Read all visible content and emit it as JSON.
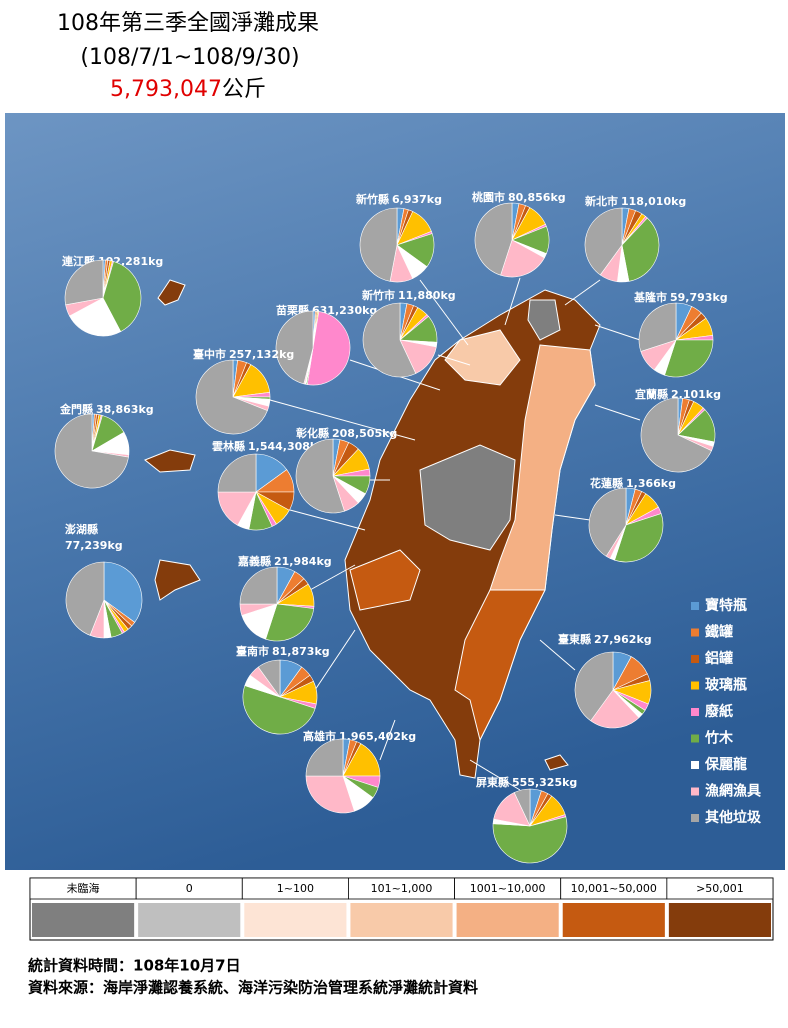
{
  "header": {
    "title": "108年第三季全國淨灘成果",
    "period": "(108/7/1~108/9/30)",
    "total": "5,793,047",
    "total_unit": "公斤"
  },
  "legend": {
    "items": [
      {
        "label": "寶特瓶",
        "color": "#5b9bd5"
      },
      {
        "label": "鐵罐",
        "color": "#ed7d31"
      },
      {
        "label": "鋁罐",
        "color": "#c55a11"
      },
      {
        "label": "玻璃瓶",
        "color": "#ffc000"
      },
      {
        "label": "廢紙",
        "color": "#ff88cc"
      },
      {
        "label": "竹木",
        "color": "#70ad47"
      },
      {
        "label": "保麗龍",
        "color": "#ffffff"
      },
      {
        "label": "漁網漁具",
        "color": "#ffb8c8"
      },
      {
        "label": "其他垃圾",
        "color": "#a5a5a5"
      }
    ]
  },
  "regions": [
    {
      "name": "新竹縣",
      "weight": "6,937kg",
      "slices": [
        3,
        2,
        2,
        12,
        1,
        15,
        8,
        10,
        47
      ]
    },
    {
      "name": "桃園市",
      "weight": "80,856kg",
      "slices": [
        3,
        3,
        2,
        10,
        1,
        12,
        2,
        22,
        45
      ]
    },
    {
      "name": "新北市",
      "weight": "118,010kg",
      "slices": [
        3,
        3,
        3,
        2,
        1,
        35,
        5,
        8,
        40
      ]
    },
    {
      "name": "連江縣",
      "weight": "102,281kg",
      "slices": [
        1,
        1,
        1,
        1,
        0.5,
        38,
        25,
        5,
        28
      ]
    },
    {
      "name": "苗栗縣",
      "weight": "631,230kg",
      "slices": [
        1,
        0.5,
        0.5,
        0.5,
        50,
        0.5,
        0.5,
        0.5,
        46
      ]
    },
    {
      "name": "新竹市",
      "weight": "11,880kg",
      "slices": [
        3,
        3,
        2,
        5,
        1,
        12,
        2,
        15,
        57
      ]
    },
    {
      "name": "基隆市",
      "weight": "59,793kg",
      "slices": [
        7,
        5,
        3,
        8,
        2,
        30,
        5,
        10,
        30
      ]
    },
    {
      "name": "臺中市",
      "weight": "257,132kg",
      "slices": [
        2,
        4,
        2,
        15,
        2,
        1,
        3,
        2,
        69
      ]
    },
    {
      "name": "宜蘭縣",
      "weight": "2,101kg",
      "slices": [
        2,
        3,
        2,
        5,
        1,
        15,
        2,
        2,
        68
      ]
    },
    {
      "name": "金門縣",
      "weight": "38,863kg",
      "slices": [
        1,
        1,
        1,
        1,
        0.5,
        12,
        10,
        1,
        72
      ]
    },
    {
      "name": "雲林縣",
      "weight": "1,544,308kg",
      "slices": [
        15,
        10,
        8,
        8,
        2,
        10,
        5,
        17,
        25
      ]
    },
    {
      "name": "彰化縣",
      "weight": "208,505kg",
      "slices": [
        3,
        4,
        5,
        10,
        3,
        8,
        5,
        7,
        55
      ]
    },
    {
      "name": "花蓮縣",
      "weight": "1,366kg",
      "slices": [
        4,
        3,
        2,
        8,
        3,
        35,
        2,
        2,
        41
      ]
    },
    {
      "name": "澎湖縣",
      "weight": "77,239kg",
      "slices": [
        35,
        2,
        2,
        2,
        1,
        5,
        3,
        6,
        44
      ]
    },
    {
      "name": "嘉義縣",
      "weight": "21,984kg",
      "slices": [
        8,
        5,
        3,
        10,
        1,
        28,
        15,
        5,
        25
      ]
    },
    {
      "name": "臺東縣",
      "weight": "27,962kg",
      "slices": [
        8,
        10,
        3,
        10,
        3,
        2,
        2,
        22,
        40
      ]
    },
    {
      "name": "臺南市",
      "weight": "81,873kg",
      "slices": [
        10,
        5,
        3,
        10,
        2,
        50,
        5,
        5,
        10
      ]
    },
    {
      "name": "高雄市",
      "weight": "1,965,402kg",
      "slices": [
        3,
        3,
        2,
        17,
        5,
        5,
        10,
        30,
        25
      ]
    },
    {
      "name": "屏東縣",
      "weight": "555,325kg",
      "slices": [
        5,
        3,
        2,
        10,
        1,
        55,
        2,
        15,
        7
      ]
    }
  ],
  "scale": {
    "bins": [
      {
        "label": "未臨海",
        "color": "#7f7f7f"
      },
      {
        "label": "0",
        "color": "#bfbfbf"
      },
      {
        "label": "1~100",
        "color": "#fde4d5"
      },
      {
        "label": "101~1,000",
        "color": "#f8caa9"
      },
      {
        "label": "1001~10,000",
        "color": "#f4b084"
      },
      {
        "label": "10,001~50,000",
        "color": "#c55a11"
      },
      {
        "label": ">50,001",
        "color": "#843c0c"
      }
    ]
  },
  "footer": {
    "date": "統計資料時間：108年10月7日",
    "source": "資料來源：海岸淨灘認養系統、海洋污染防治管理系統淨灘統計資料"
  }
}
